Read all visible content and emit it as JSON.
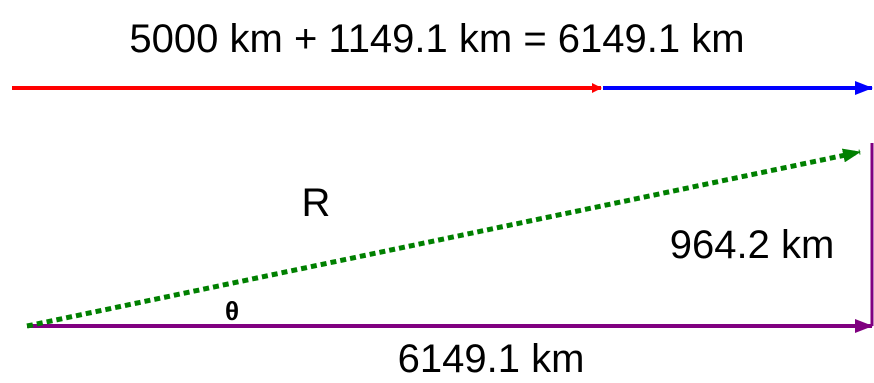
{
  "equation_text": "5000 km + 1149.1 km = 6149.1 km",
  "resultant_label": "R",
  "vertical_label": "964.2 km",
  "horizontal_label": "6149.1 km",
  "angle_label": "θ",
  "colors": {
    "first_vector": "#ff0000",
    "second_vector": "#0000ff",
    "resultant": "#008000",
    "triangle_sides": "#800080",
    "text": "#000000"
  }
}
